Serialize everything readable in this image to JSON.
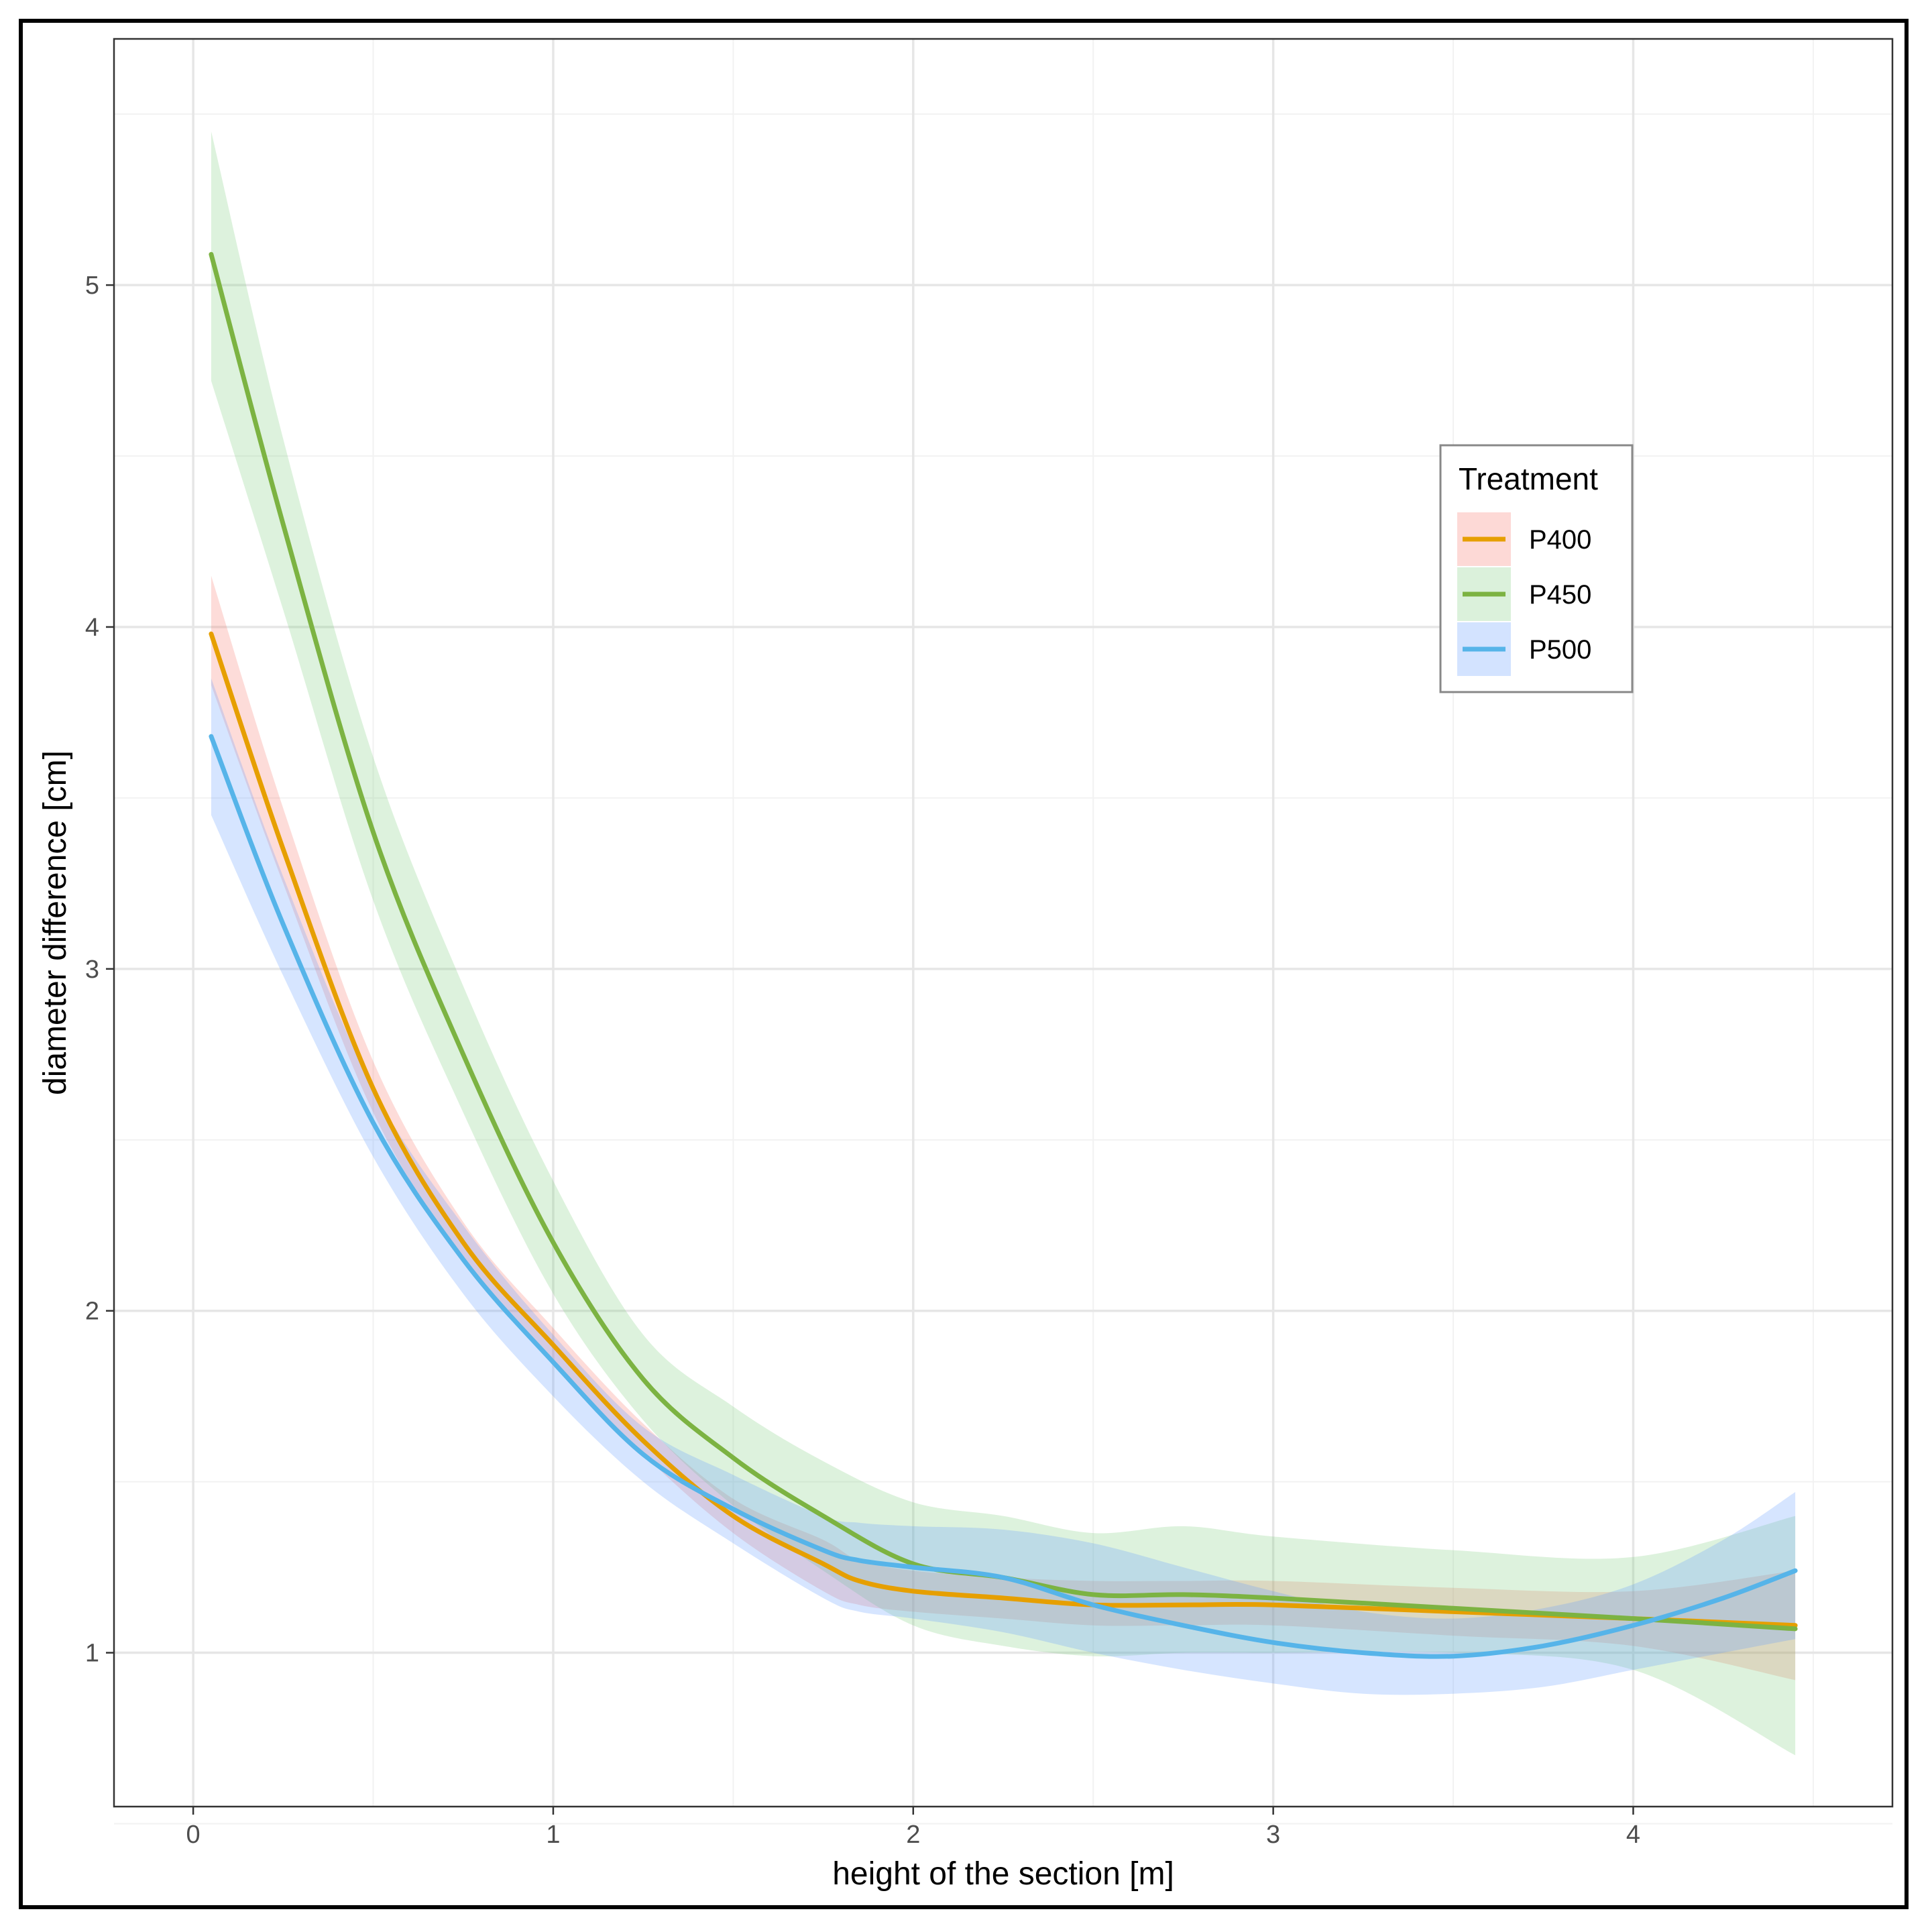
{
  "chart_data": {
    "type": "line",
    "xlabel": "height of the section [m]",
    "ylabel": "diameter difference [cm]",
    "xlim": [
      -0.22,
      4.72
    ],
    "ylim": [
      0.55,
      5.72
    ],
    "x_ticks": [
      0,
      1,
      2,
      3,
      4
    ],
    "x_tick_labels": [
      "0",
      "1",
      "2",
      "3",
      "4"
    ],
    "x_minor_ticks": [
      0.5,
      1.5,
      2.5,
      3.5,
      4.5
    ],
    "y_ticks": [
      1,
      2,
      3,
      4,
      5
    ],
    "y_tick_labels": [
      "1",
      "2",
      "3",
      "4",
      "5"
    ],
    "y_minor_ticks": [
      0.5,
      1.5,
      2.5,
      3.5,
      4.5,
      5.5
    ],
    "grid": true,
    "legend": {
      "title": "Treatment",
      "placement": "upper-right inside plot",
      "entries": [
        "P400",
        "P450",
        "P500"
      ]
    },
    "series": [
      {
        "name": "P400",
        "line_color": "#E69F00",
        "band_color": "#F8766D",
        "x": [
          0.05,
          0.25,
          0.5,
          0.75,
          1.0,
          1.25,
          1.5,
          1.75,
          1.85,
          2.0,
          2.25,
          2.5,
          2.75,
          3.0,
          3.5,
          4.0,
          4.45
        ],
        "y": [
          3.98,
          3.35,
          2.65,
          2.2,
          1.9,
          1.62,
          1.4,
          1.26,
          1.21,
          1.18,
          1.16,
          1.14,
          1.14,
          1.14,
          1.12,
          1.1,
          1.08
        ],
        "lower": [
          3.83,
          3.25,
          2.58,
          2.15,
          1.85,
          1.58,
          1.35,
          1.18,
          1.14,
          1.12,
          1.1,
          1.08,
          1.08,
          1.08,
          1.05,
          1.02,
          0.92
        ],
        "upper": [
          4.15,
          3.47,
          2.73,
          2.26,
          1.95,
          1.67,
          1.45,
          1.33,
          1.27,
          1.24,
          1.22,
          1.21,
          1.21,
          1.21,
          1.19,
          1.18,
          1.24
        ]
      },
      {
        "name": "P450",
        "line_color": "#7CB342",
        "band_color": "#7CCD7C",
        "x": [
          0.05,
          0.25,
          0.5,
          0.75,
          1.0,
          1.25,
          1.5,
          1.75,
          2.0,
          2.25,
          2.5,
          2.75,
          3.0,
          3.5,
          4.0,
          4.45
        ],
        "y": [
          5.09,
          4.3,
          3.4,
          2.75,
          2.2,
          1.8,
          1.57,
          1.4,
          1.26,
          1.22,
          1.17,
          1.17,
          1.16,
          1.13,
          1.1,
          1.07
        ],
        "lower": [
          4.72,
          4.05,
          3.2,
          2.58,
          2.05,
          1.68,
          1.43,
          1.24,
          1.08,
          1.02,
          0.99,
          1.0,
          1.0,
          1.0,
          0.95,
          0.7
        ],
        "upper": [
          5.45,
          4.55,
          3.62,
          2.95,
          2.38,
          1.93,
          1.72,
          1.56,
          1.44,
          1.4,
          1.35,
          1.37,
          1.34,
          1.3,
          1.28,
          1.4
        ]
      },
      {
        "name": "P500",
        "line_color": "#56B4E9",
        "band_color": "#619CFF",
        "x": [
          0.05,
          0.25,
          0.5,
          0.75,
          1.0,
          1.25,
          1.5,
          1.75,
          1.85,
          2.0,
          2.25,
          2.5,
          2.75,
          3.0,
          3.25,
          3.5,
          3.75,
          4.0,
          4.25,
          4.45
        ],
        "y": [
          3.68,
          3.13,
          2.55,
          2.15,
          1.85,
          1.58,
          1.42,
          1.3,
          1.27,
          1.25,
          1.22,
          1.14,
          1.08,
          1.03,
          1.0,
          0.99,
          1.02,
          1.08,
          1.16,
          1.24
        ],
        "lower": [
          3.45,
          2.98,
          2.45,
          2.05,
          1.75,
          1.5,
          1.32,
          1.16,
          1.12,
          1.1,
          1.06,
          1.0,
          0.95,
          0.91,
          0.88,
          0.88,
          0.9,
          0.95,
          1.0,
          1.04
        ],
        "upper": [
          3.85,
          3.27,
          2.65,
          2.25,
          1.93,
          1.66,
          1.52,
          1.4,
          1.38,
          1.37,
          1.36,
          1.32,
          1.25,
          1.18,
          1.12,
          1.1,
          1.13,
          1.2,
          1.33,
          1.47
        ]
      }
    ]
  }
}
